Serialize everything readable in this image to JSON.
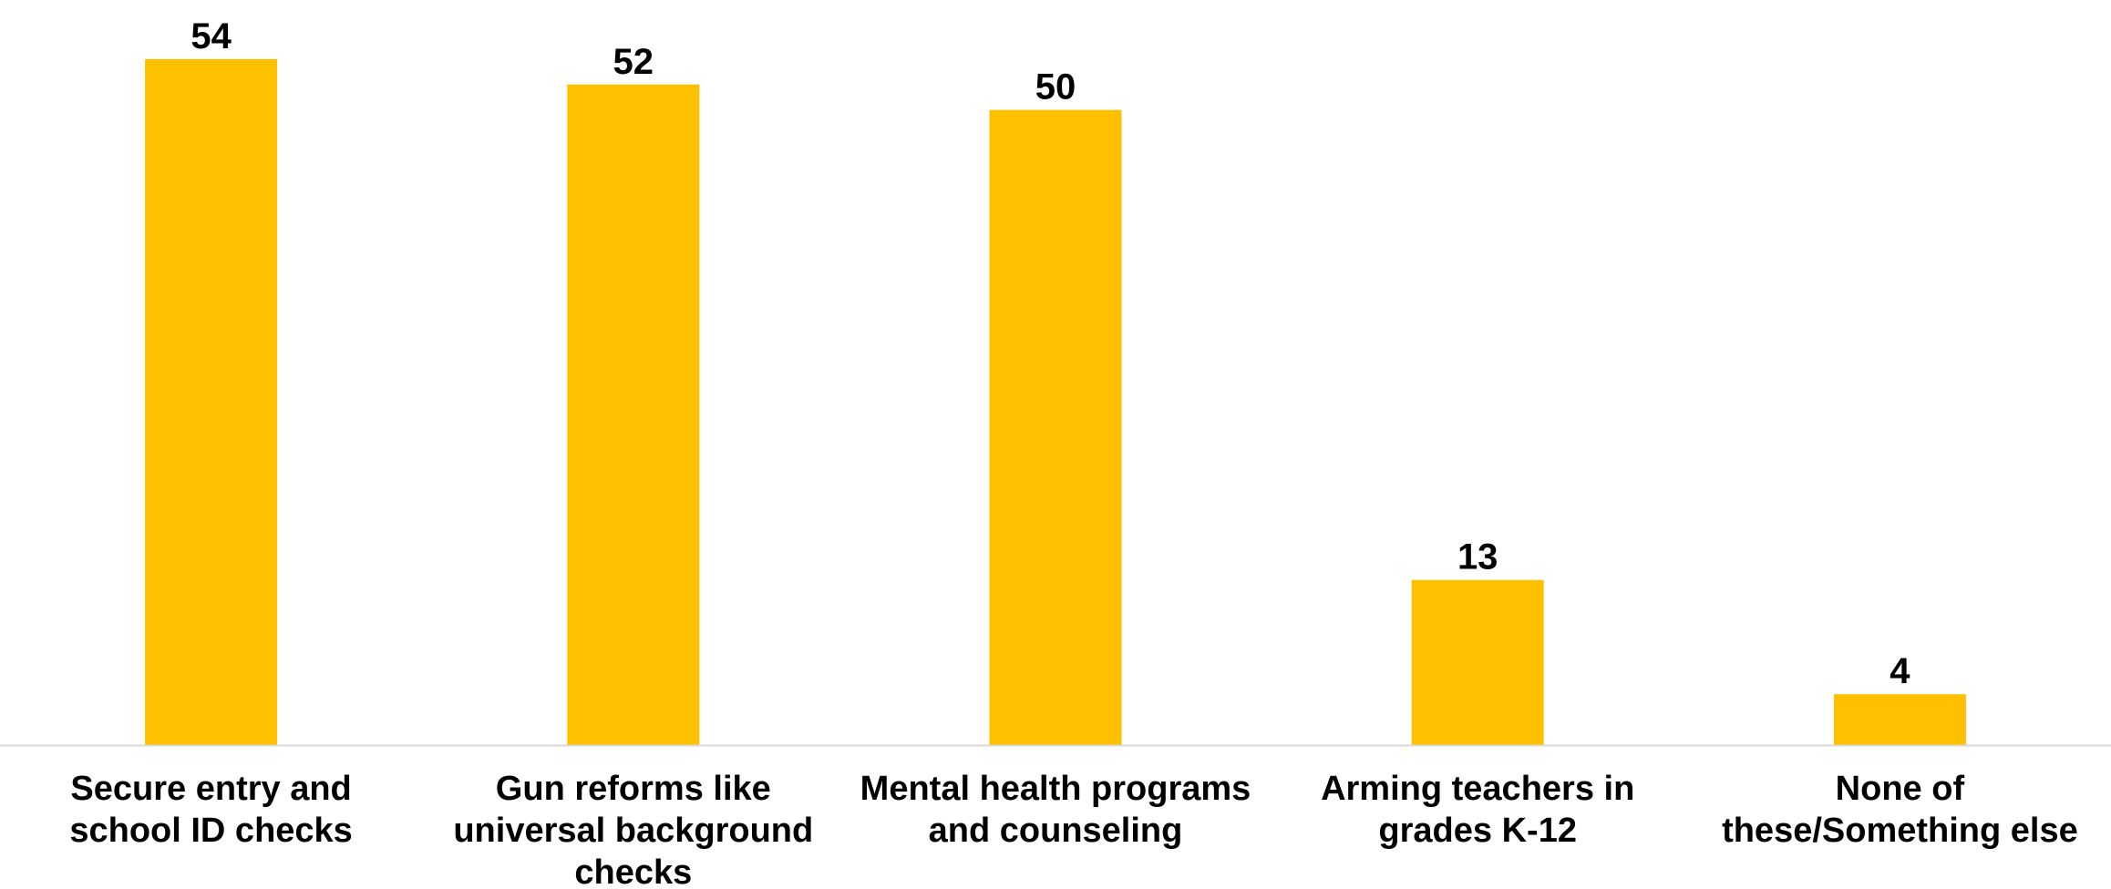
{
  "chart_data": {
    "type": "bar",
    "title": "",
    "xlabel": "",
    "ylabel": "",
    "ylim": [
      0,
      56.5
    ],
    "grid": false,
    "bar_color": "#FFC000",
    "axis_color": "#D9D9D9",
    "categories": [
      [
        "Secure entry and",
        "school ID checks"
      ],
      [
        "Gun reforms like",
        "universal background",
        "checks"
      ],
      [
        "Mental health programs",
        "and counseling"
      ],
      [
        "Arming teachers in",
        "grades K-12"
      ],
      [
        "None of",
        "these/Something else"
      ]
    ],
    "values": [
      54,
      52,
      50,
      13,
      4
    ],
    "data_labels": [
      "54",
      "52",
      "50",
      "13",
      "4"
    ]
  }
}
